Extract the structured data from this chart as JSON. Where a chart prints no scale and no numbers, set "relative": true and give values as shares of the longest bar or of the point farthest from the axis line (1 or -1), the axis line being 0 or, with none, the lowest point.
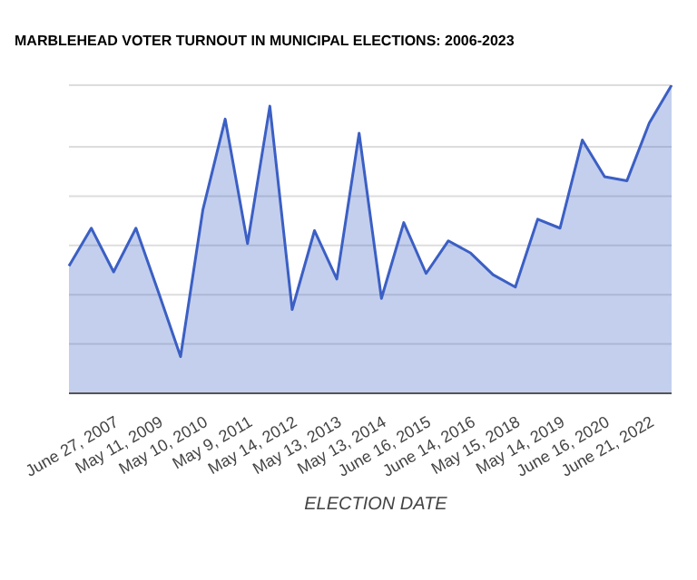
{
  "chart_data": {
    "type": "area",
    "title": "MARBLEHEAD VOTER TURNOUT IN MUNICIPAL ELECTIONS: 2006-2023",
    "xlabel": "ELECTION DATE",
    "relative": true,
    "grid": "y",
    "categories": [
      null,
      null,
      "June 27, 2007",
      null,
      "May 11, 2009",
      null,
      "May 10, 2010",
      null,
      "May 9, 2011",
      null,
      "May 14, 2012",
      null,
      "May 13, 2013",
      null,
      "May 13, 2014",
      null,
      "June 16, 2015",
      null,
      "June 14, 2016",
      null,
      "May 15, 2018",
      null,
      "May 14, 2019",
      null,
      "June 16, 2020",
      null,
      "June 21, 2022",
      null
    ],
    "series": [
      {
        "color": "#3b5fc4",
        "values": [
          0.413,
          0.536,
          0.394,
          0.536,
          0.33,
          0.119,
          0.596,
          0.89,
          0.486,
          0.932,
          0.272,
          0.528,
          0.371,
          0.844,
          0.308,
          0.554,
          0.389,
          0.495,
          0.455,
          0.385,
          0.345,
          0.565,
          0.536,
          0.822,
          0.703,
          0.69,
          0.877,
          1
        ]
      }
    ]
  }
}
